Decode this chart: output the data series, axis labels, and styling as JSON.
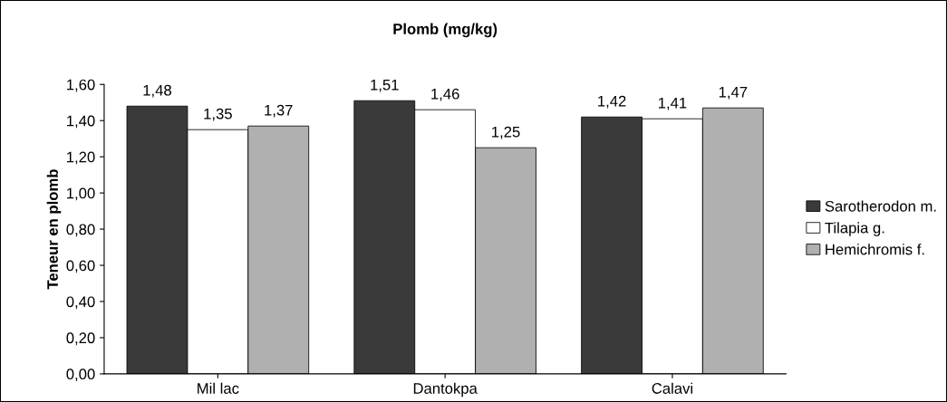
{
  "chart_data": {
    "type": "bar",
    "title": "Plomb (mg/kg)",
    "ylabel": "Teneur en plomb",
    "categories": [
      "Mil lac",
      "Dantokpa",
      "Calavi"
    ],
    "series": [
      {
        "name": "Sarotherodon m.",
        "color": "#3a3a3a",
        "values": [
          1.48,
          1.51,
          1.42
        ],
        "value_labels": [
          "1,48",
          "1,51",
          "1,42"
        ]
      },
      {
        "name": "Tilapia g.",
        "color": "#ffffff",
        "values": [
          1.35,
          1.46,
          1.41
        ],
        "value_labels": [
          "1,35",
          "1,46",
          "1,41"
        ]
      },
      {
        "name": "Hemichromis f.",
        "color": "#b0b0b0",
        "values": [
          1.37,
          1.25,
          1.47
        ],
        "value_labels": [
          "1,37",
          "1,25",
          "1,47"
        ]
      }
    ],
    "ylim": [
      0,
      1.6
    ],
    "yticks": [
      {
        "value": 0,
        "label": "0,00"
      },
      {
        "value": 0.2,
        "label": "0,20"
      },
      {
        "value": 0.4,
        "label": "0,40"
      },
      {
        "value": 0.6,
        "label": "0,60"
      },
      {
        "value": 0.8,
        "label": "0,80"
      },
      {
        "value": 1.0,
        "label": "1,00"
      },
      {
        "value": 1.2,
        "label": "1,20"
      },
      {
        "value": 1.4,
        "label": "1,40"
      },
      {
        "value": 1.6,
        "label": "1,60"
      }
    ],
    "grid": false,
    "legend": "right"
  }
}
